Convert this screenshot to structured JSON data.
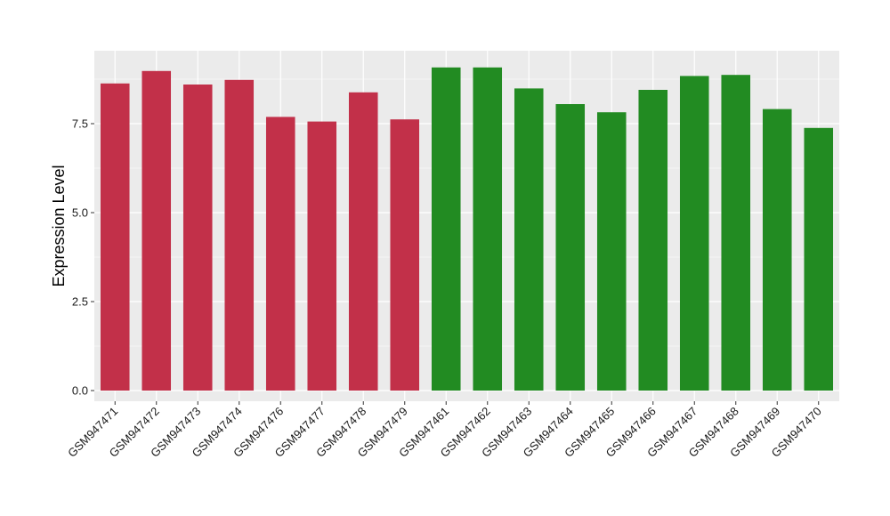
{
  "chart_data": {
    "type": "bar",
    "title": "",
    "xlabel": "",
    "ylabel": "Expression Level",
    "ylim": [
      -0.3,
      9.55
    ],
    "yticks": [
      0.0,
      2.5,
      5.0,
      7.5
    ],
    "ytick_labels": [
      "0.0",
      "2.5",
      "5.0",
      "7.5"
    ],
    "grid": true,
    "legend": "none",
    "categories": [
      "GSM947471",
      "GSM947472",
      "GSM947473",
      "GSM947474",
      "GSM947476",
      "GSM947477",
      "GSM947478",
      "GSM947479",
      "GSM947461",
      "GSM947462",
      "GSM947463",
      "GSM947464",
      "GSM947465",
      "GSM947466",
      "GSM947467",
      "GSM947468",
      "GSM947469",
      "GSM947470"
    ],
    "values": [
      8.63,
      8.98,
      8.6,
      8.73,
      7.69,
      7.56,
      8.38,
      7.62,
      9.08,
      9.08,
      8.49,
      8.05,
      7.82,
      8.45,
      8.84,
      8.87,
      7.91,
      7.38
    ],
    "bar_colors": [
      "#C23049",
      "#C23049",
      "#C23049",
      "#C23049",
      "#C23049",
      "#C23049",
      "#C23049",
      "#C23049",
      "#228B22",
      "#228B22",
      "#228B22",
      "#228B22",
      "#228B22",
      "#228B22",
      "#228B22",
      "#228B22",
      "#228B22",
      "#228B22"
    ],
    "panel_background": "#EBEBEB",
    "grid_color": "#FFFFFF"
  }
}
